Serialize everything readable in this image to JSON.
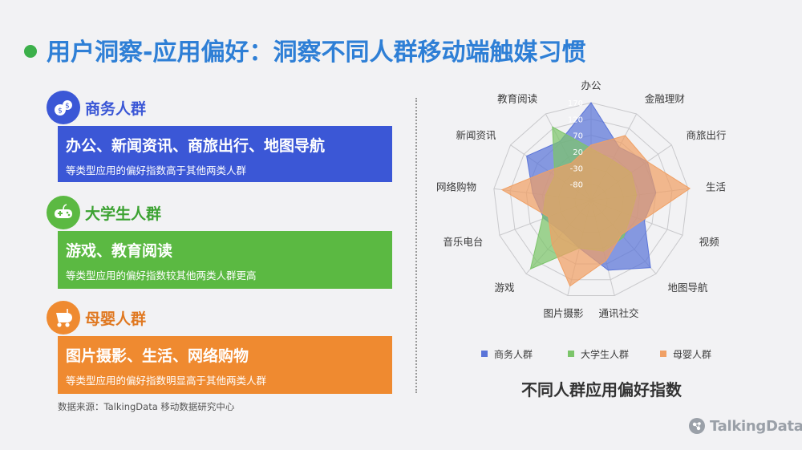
{
  "header": {
    "title": "用户洞察-应用偏好：洞察不同人群移动端触媒习惯"
  },
  "groups": [
    {
      "label": "商务人群",
      "color": "#3b57d6",
      "icon": "money-bag-icon",
      "headline": "办公、新闻资讯、商旅出行、地图导航",
      "desc": "等类型应用的偏好指数高于其他两类人群"
    },
    {
      "label": "大学生人群",
      "color": "#5bb942",
      "icon": "gamepad-icon",
      "headline": "游戏、教育阅读",
      "desc": "等类型应用的偏好指数较其他两类人群更高"
    },
    {
      "label": "母婴人群",
      "color": "#ef8a30",
      "icon": "baby-stroller-icon",
      "headline": "图片摄影、生活、网络购物",
      "desc": "等类型应用的偏好指数明显高于其他两类人群"
    }
  ],
  "source": "数据来源：TalkingData 移动数据研究中心",
  "chart_data": {
    "type": "radar",
    "title": "不同人群应用偏好指数",
    "categories": [
      "办公",
      "金融理财",
      "商旅出行",
      "生活",
      "视频",
      "地图导航",
      "通讯社交",
      "图片摄影",
      "游戏",
      "音乐电台",
      "网络购物",
      "新闻资讯",
      "教育阅读"
    ],
    "ticks": [
      -80,
      -30,
      20,
      70,
      120,
      170
    ],
    "range": [
      -130,
      170
    ],
    "legend_position": "bottom",
    "series": [
      {
        "name": "商务人群",
        "color": "#5a74d8",
        "values": [
          170,
          55,
          80,
          70,
          45,
          145,
          90,
          20,
          0,
          25,
          50,
          110,
          75
        ]
      },
      {
        "name": "大学生人群",
        "color": "#7cc56a",
        "values": [
          30,
          10,
          20,
          10,
          0,
          20,
          30,
          20,
          150,
          30,
          10,
          5,
          125
        ]
      },
      {
        "name": "母婴人群",
        "color": "#f0a065",
        "values": [
          40,
          95,
          80,
          175,
          40,
          10,
          60,
          140,
          50,
          10,
          145,
          30,
          0
        ]
      }
    ]
  },
  "brand": {
    "name": "TalkingData"
  }
}
